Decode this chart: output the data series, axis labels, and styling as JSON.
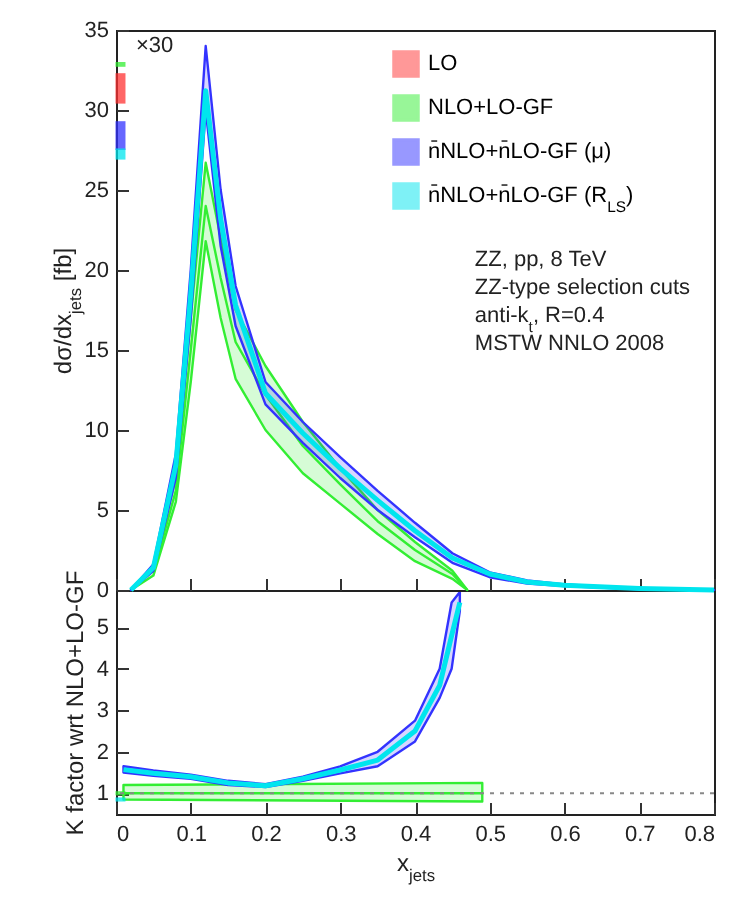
{
  "chart_data": [
    {
      "type": "line",
      "ylabel": "dσ/dx$_{jets}$ [fb]",
      "xlim": [
        0,
        0.8
      ],
      "xticks": [
        0,
        0.1,
        0.2,
        0.3,
        0.4,
        0.5,
        0.6,
        0.7,
        0.8
      ],
      "ylim": [
        0,
        35
      ],
      "yticks": [
        0,
        5,
        10,
        15,
        20,
        25,
        30,
        35
      ],
      "tick_labels": "y",
      "legend": "top right",
      "grid": false,
      "annotations": [
        "×30",
        "ZZ, pp, 8 TeV",
        "ZZ-type selection cuts",
        "anti-k$_{t}$, R=0.4",
        "MSTW NNLO 2008"
      ],
      "series": [
        {
          "name": "LO",
          "type": "bar",
          "color": "#ff3333",
          "x": [
            0.006
          ],
          "base": [
            30.4
          ],
          "values": [
            1.9
          ]
        },
        {
          "name": "NLO+LO-GF",
          "color": "#33ee33",
          "x": [
            0.02,
            0.05,
            0.08,
            0.1,
            0.12,
            0.14,
            0.16,
            0.2,
            0.25,
            0.3,
            0.35,
            0.4,
            0.45,
            0.47
          ],
          "values": [
            null,
            1.1,
            6.2,
            15,
            24,
            19.5,
            15.5,
            12.2,
            9,
            6.6,
            4.3,
            2.5,
            1,
            0
          ],
          "lower": [
            0,
            0.9,
            5.5,
            13,
            21.8,
            17,
            13.2,
            10,
            7.3,
            5.4,
            3.5,
            1.8,
            0.7,
            0
          ],
          "upper": [
            0,
            1.3,
            7,
            17,
            26.7,
            22,
            17.5,
            14,
            10.5,
            7.6,
            5,
            3,
            1.2,
            0
          ]
        },
        {
          "name": "n̄NLO+n̄LO-GF (μ)",
          "color": "#3333ff",
          "x": [
            0.02,
            0.05,
            0.08,
            0.1,
            0.12,
            0.14,
            0.16,
            0.2,
            0.25,
            0.3,
            0.35,
            0.4,
            0.45,
            0.5,
            0.55,
            0.6,
            0.7,
            0.8
          ],
          "values": [
            null,
            null,
            null,
            null,
            null,
            null,
            null,
            null,
            null,
            null,
            null,
            null,
            null,
            null,
            null,
            null,
            null,
            null
          ],
          "lower": [
            0,
            1.2,
            7,
            17,
            30,
            21.5,
            16.5,
            11.6,
            9.2,
            7.0,
            5.0,
            3.3,
            1.7,
            0.8,
            0.4,
            0.25,
            0.05,
            0
          ],
          "upper": [
            0,
            1.6,
            8.5,
            20,
            34,
            25,
            19,
            13,
            10.5,
            8.3,
            6.2,
            4.2,
            2.3,
            1.1,
            0.6,
            0.35,
            0.1,
            0
          ]
        },
        {
          "name": "n̄NLO+n̄LO-GF (R$_{LS}$)",
          "color": "#00e5ee",
          "x": [
            0.02,
            0.05,
            0.08,
            0.1,
            0.12,
            0.14,
            0.16,
            0.2,
            0.25,
            0.3,
            0.35,
            0.4,
            0.45,
            0.5,
            0.55,
            0.6,
            0.7,
            0.8
          ],
          "values": [
            0,
            1.4,
            7.8,
            18.5,
            31.2,
            23.2,
            17.8,
            12.3,
            9.8,
            7.6,
            5.6,
            3.7,
            2.0,
            1.0,
            0.5,
            0.3,
            0.1,
            0
          ]
        },
        {
          "type": "bar",
          "color": "#33ee33",
          "x": [
            0.006
          ],
          "base": [
            32.7
          ],
          "values": [
            0.3
          ]
        },
        {
          "type": "bar",
          "color": "#3333ff",
          "x": [
            0.006
          ],
          "base": [
            27.5
          ],
          "values": [
            1.8
          ]
        },
        {
          "type": "bar",
          "color": "#00e5ee",
          "x": [
            0.006
          ],
          "base": [
            26.9
          ],
          "values": [
            0.7
          ]
        }
      ]
    },
    {
      "type": "line",
      "xlabel": "x$_{jets}$",
      "ylabel": "K factor wrt NLO+LO-GF",
      "xlim": [
        0,
        0.8
      ],
      "xticks": [
        0,
        0.1,
        0.2,
        0.3,
        0.4,
        0.5,
        0.6,
        0.7,
        0.8
      ],
      "ylim": [
        0.5,
        5.9
      ],
      "yticks": [
        1,
        2,
        3,
        4,
        5
      ],
      "grid": false,
      "ref_lines": [
        {
          "axis": "y",
          "value": 1,
          "color": "#888888",
          "line_style": "dotted"
        }
      ],
      "series": [
        {
          "color": "#33ee33",
          "x": [
            0.01,
            0.49
          ],
          "values": [
            1,
            1
          ],
          "lower": [
            0.85,
            0.8
          ],
          "upper": [
            1.2,
            1.25
          ]
        },
        {
          "color": "#3333ff",
          "x": [
            0.01,
            0.05,
            0.1,
            0.15,
            0.2,
            0.25,
            0.3,
            0.35,
            0.4,
            0.433,
            0.449,
            0.46
          ],
          "values": [
            null,
            null,
            null,
            null,
            null,
            null,
            null,
            null,
            null,
            null,
            null,
            null
          ],
          "lower": [
            1.5,
            1.42,
            1.35,
            1.2,
            1.15,
            1.3,
            1.48,
            1.65,
            2.25,
            3.3,
            4.0,
            5.4
          ],
          "upper": [
            1.65,
            1.55,
            1.45,
            1.3,
            1.22,
            1.4,
            1.65,
            2.0,
            2.75,
            4.0,
            5.6,
            5.85
          ]
        },
        {
          "color": "#00e5ee",
          "x": [
            0.01,
            0.05,
            0.1,
            0.15,
            0.2,
            0.25,
            0.3,
            0.35,
            0.4,
            0.433,
            0.449,
            0.46
          ],
          "values": [
            1.57,
            1.48,
            1.4,
            1.25,
            1.18,
            1.35,
            1.56,
            1.8,
            2.5,
            3.6,
            4.8,
            5.6
          ]
        },
        {
          "type": "bar",
          "color": "#33ee33",
          "x": [
            0.006
          ],
          "base": [
            0.95
          ],
          "values": [
            0.1
          ]
        },
        {
          "type": "bar",
          "color": "#00e5ee",
          "x": [
            0.006
          ],
          "base": [
            0.8
          ],
          "values": [
            0.1
          ]
        }
      ]
    }
  ]
}
